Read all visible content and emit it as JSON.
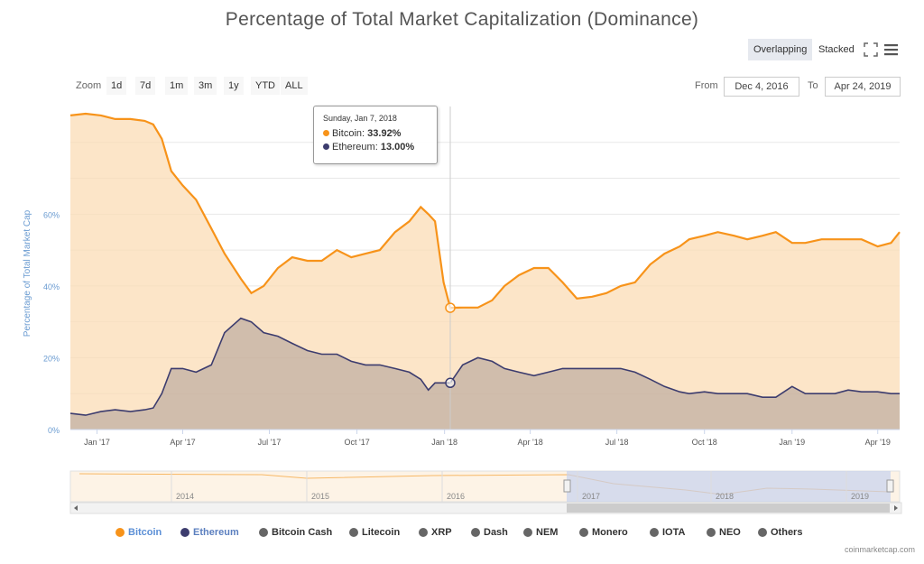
{
  "title": "Percentage of Total Market Capitalization (Dominance)",
  "toolbar": {
    "overlapping_label": "Overlapping",
    "stacked_label": "Stacked",
    "zoom_label": "Zoom",
    "zoom_buttons": [
      "1d",
      "7d",
      "1m",
      "3m",
      "1y",
      "YTD",
      "ALL"
    ],
    "from_label": "From",
    "from_value": "Dec 4, 2016",
    "to_label": "To",
    "to_value": "Apr 24, 2019"
  },
  "tooltip": {
    "date": "Sunday, Jan 7, 2018",
    "rows": [
      {
        "name": "Bitcoin",
        "value": "33.92%"
      },
      {
        "name": "Ethereum",
        "value": "13.00%"
      }
    ]
  },
  "navigator": {
    "year_labels": [
      "2014",
      "2015",
      "2016",
      "2017",
      "2018",
      "2019"
    ]
  },
  "credit": "coinmarketcap.com",
  "colors": {
    "bitcoin": "#f7931a",
    "ethereum": "#3c3c6e",
    "grey_series": "#666666",
    "axis_text": "#6a9bd1"
  },
  "chart_data": {
    "type": "area",
    "title": "Percentage of Total Market Capitalization (Dominance)",
    "ylabel": "Percentage of Total Market Cap",
    "ylim": [
      0,
      90
    ],
    "y_ticks": [
      "0%",
      "20%",
      "40%",
      "60%"
    ],
    "x_ticks": [
      "Jan '17",
      "Apr '17",
      "Jul '17",
      "Oct '17",
      "Jan '18",
      "Apr '18",
      "Jul '18",
      "Oct '18",
      "Jan '19",
      "Apr '19"
    ],
    "legend_position": "bottom",
    "grid": true,
    "legend": [
      "Bitcoin",
      "Ethereum",
      "Bitcoin Cash",
      "Litecoin",
      "XRP",
      "Dash",
      "NEM",
      "Monero",
      "IOTA",
      "NEO",
      "Others"
    ],
    "series": [
      {
        "name": "Bitcoin",
        "x": [
          "2016-12-04",
          "2016-12-20",
          "2017-01-05",
          "2017-01-20",
          "2017-02-05",
          "2017-02-20",
          "2017-03-01",
          "2017-03-10",
          "2017-03-20",
          "2017-04-01",
          "2017-04-15",
          "2017-05-01",
          "2017-05-15",
          "2017-06-01",
          "2017-06-12",
          "2017-06-25",
          "2017-07-10",
          "2017-07-25",
          "2017-08-10",
          "2017-08-25",
          "2017-09-10",
          "2017-09-25",
          "2017-10-10",
          "2017-10-25",
          "2017-11-10",
          "2017-11-25",
          "2017-12-07",
          "2017-12-15",
          "2017-12-22",
          "2017-12-31",
          "2018-01-07",
          "2018-01-20",
          "2018-02-05",
          "2018-02-20",
          "2018-03-05",
          "2018-03-20",
          "2018-04-05",
          "2018-04-20",
          "2018-05-05",
          "2018-05-20",
          "2018-06-05",
          "2018-06-20",
          "2018-07-05",
          "2018-07-20",
          "2018-08-05",
          "2018-08-20",
          "2018-09-05",
          "2018-09-15",
          "2018-10-01",
          "2018-10-15",
          "2018-11-01",
          "2018-11-15",
          "2018-12-01",
          "2018-12-15",
          "2019-01-01",
          "2019-01-15",
          "2019-02-01",
          "2019-02-15",
          "2019-03-01",
          "2019-03-15",
          "2019-04-01",
          "2019-04-15",
          "2019-04-24"
        ],
        "values": [
          87.5,
          88,
          87.5,
          86.5,
          86.5,
          86,
          85,
          81,
          72,
          68,
          64,
          56,
          49,
          42,
          38,
          40,
          45,
          48,
          47,
          47,
          50,
          48,
          49,
          50,
          55,
          58,
          62,
          60,
          58,
          41,
          33.92,
          34,
          34,
          36,
          40,
          43,
          45,
          45,
          41,
          36.5,
          37,
          38,
          40,
          41,
          46,
          49,
          51,
          53,
          54,
          55,
          54,
          53,
          54,
          55,
          52,
          52,
          53,
          53,
          53,
          53,
          51,
          52,
          55
        ]
      },
      {
        "name": "Ethereum",
        "x": [
          "2016-12-04",
          "2016-12-20",
          "2017-01-05",
          "2017-01-20",
          "2017-02-05",
          "2017-02-20",
          "2017-03-01",
          "2017-03-10",
          "2017-03-20",
          "2017-04-01",
          "2017-04-15",
          "2017-05-01",
          "2017-05-15",
          "2017-06-01",
          "2017-06-12",
          "2017-06-25",
          "2017-07-10",
          "2017-07-25",
          "2017-08-10",
          "2017-08-25",
          "2017-09-10",
          "2017-09-25",
          "2017-10-10",
          "2017-10-25",
          "2017-11-10",
          "2017-11-25",
          "2017-12-07",
          "2017-12-15",
          "2017-12-22",
          "2017-12-31",
          "2018-01-07",
          "2018-01-20",
          "2018-02-05",
          "2018-02-20",
          "2018-03-05",
          "2018-03-20",
          "2018-04-05",
          "2018-04-20",
          "2018-05-05",
          "2018-05-20",
          "2018-06-05",
          "2018-06-20",
          "2018-07-05",
          "2018-07-20",
          "2018-08-05",
          "2018-08-20",
          "2018-09-05",
          "2018-09-15",
          "2018-10-01",
          "2018-10-15",
          "2018-11-01",
          "2018-11-15",
          "2018-12-01",
          "2018-12-15",
          "2019-01-01",
          "2019-01-15",
          "2019-02-01",
          "2019-02-15",
          "2019-03-01",
          "2019-03-15",
          "2019-04-01",
          "2019-04-15",
          "2019-04-24"
        ],
        "values": [
          4.5,
          4,
          5,
          5.5,
          5,
          5.5,
          6,
          10,
          17,
          17,
          16,
          18,
          27,
          31,
          30,
          27,
          26,
          24,
          22,
          21,
          21,
          19,
          18,
          18,
          17,
          16,
          14,
          11,
          13,
          13,
          13,
          18,
          20,
          19,
          17,
          16,
          15,
          16,
          17,
          17,
          17,
          17,
          17,
          16,
          14,
          12,
          10.5,
          10,
          10.5,
          10,
          10,
          10,
          9,
          9,
          12,
          10,
          10,
          10,
          11,
          10.5,
          10.5,
          10,
          10
        ]
      }
    ]
  }
}
